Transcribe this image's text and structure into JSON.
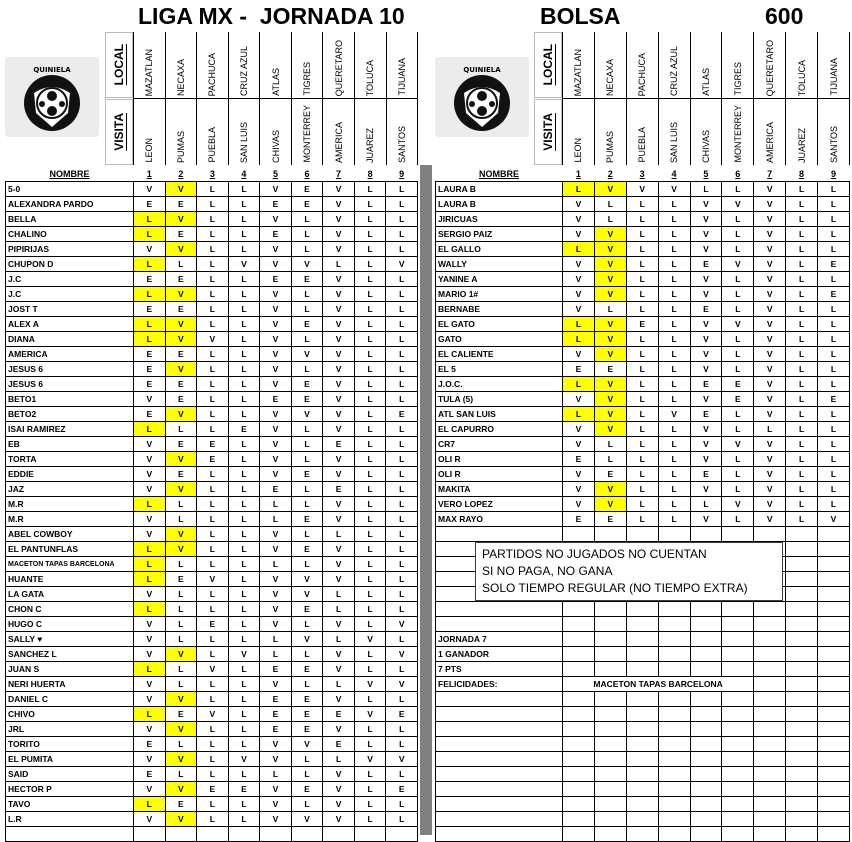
{
  "header": {
    "title": "LIGA MX -  JORNADA 10",
    "bolsa_label": "BOLSA",
    "bolsa_amount": "600",
    "logo_text": "QUINIELA",
    "local_label": "LOCAL",
    "visita_label": "VISITA"
  },
  "matches": [
    {
      "local": "MAZATLAN",
      "visita": "LEON"
    },
    {
      "local": "NECAXA",
      "visita": "PUMAS"
    },
    {
      "local": "PACHUCA",
      "visita": "PUEBLA"
    },
    {
      "local": "CRUZ AZUL",
      "visita": "SAN LUIS"
    },
    {
      "local": "ATLAS",
      "visita": "CHIVAS"
    },
    {
      "local": "TIGRES",
      "visita": "MONTERREY"
    },
    {
      "local": "QUERETARO",
      "visita": "AMERICA"
    },
    {
      "local": "TOLUCA",
      "visita": "JUAREZ"
    },
    {
      "local": "TIJUANA",
      "visita": "SANTOS"
    }
  ],
  "results": [
    "L",
    "V",
    null,
    null,
    null,
    null,
    null,
    null,
    null
  ],
  "highlight_color": "#ffff00",
  "column_headers": {
    "name": "NOMBRE",
    "numbers": [
      "1",
      "2",
      "3",
      "4",
      "5",
      "6",
      "7",
      "8",
      "9"
    ]
  },
  "left_entries": [
    {
      "name": "5-0",
      "picks": "VVLLVEVLL"
    },
    {
      "name": "ALEXANDRA PARDO",
      "picks": "EELLEEVLL"
    },
    {
      "name": "BELLA",
      "picks": "LVLLVLVLL"
    },
    {
      "name": "CHALINO",
      "picks": "LELLELVLL"
    },
    {
      "name": "PIPIRIJAS",
      "picks": "VVLLVLVLL"
    },
    {
      "name": "CHUPON D",
      "picks": "LLLVVVLLV"
    },
    {
      "name": "J.C",
      "picks": "EELLEEVLL"
    },
    {
      "name": "J.C",
      "picks": "LVLLVLVLL"
    },
    {
      "name": "JOST T",
      "picks": "EELLVLVLL"
    },
    {
      "name": "ALEX A",
      "picks": "LVLLVEVLL"
    },
    {
      "name": "DIANA",
      "picks": "LVVLVLVLL"
    },
    {
      "name": "AMERICA",
      "picks": "EELLVVVLL"
    },
    {
      "name": "JESUS 6",
      "picks": "EVLLVLVLL"
    },
    {
      "name": "JESUS 6",
      "picks": "EELLVEVLL"
    },
    {
      "name": "BETO1",
      "picks": "VELLEEVLL"
    },
    {
      "name": "BETO2",
      "picks": "EVLLVVVLE"
    },
    {
      "name": "ISAI RAMIREZ",
      "picks": "LLLEVLVLL"
    },
    {
      "name": "EB",
      "picks": "VEELVLELL"
    },
    {
      "name": "TORTA",
      "picks": "VVELVLVLL"
    },
    {
      "name": "EDDIE",
      "picks": "VELLVEVLL"
    },
    {
      "name": "JAZ",
      "picks": "VVLLELELL"
    },
    {
      "name": "M.R",
      "picks": "LLLLLLVLL"
    },
    {
      "name": "M.R",
      "picks": "VLLLLEVLL"
    },
    {
      "name": "ABEL COWBOY",
      "picks": "VVLLVLLLL"
    },
    {
      "name": "EL PANTUNFLAS",
      "picks": "LVLLVEVLL"
    },
    {
      "name": "MACETON TAPAS BARCELONA",
      "picks": "LLLLLLVLL"
    },
    {
      "name": "HUANTE",
      "picks": "LEVLVVVLL"
    },
    {
      "name": "LA GATA",
      "picks": "VLLLVVLLL"
    },
    {
      "name": "CHON C",
      "picks": "LLLLVELLL"
    },
    {
      "name": "HUGO C",
      "picks": "VLELVLVLV"
    },
    {
      "name": "SALLY ♥",
      "picks": "VLLLLVLVL"
    },
    {
      "name": "SANCHEZ L",
      "picks": "VVLVLLVLV"
    },
    {
      "name": "JUAN S",
      "picks": "LLVLEEVLL"
    },
    {
      "name": "NERI HUERTA",
      "picks": "VLLLVLLVV"
    },
    {
      "name": "DANIEL C",
      "picks": "VVLLEEVLL"
    },
    {
      "name": "CHIVO",
      "picks": "LEVLEEEVE"
    },
    {
      "name": "JRL",
      "picks": "VVLLEEVLL"
    },
    {
      "name": "TORITO",
      "picks": "ELLLVVELL"
    },
    {
      "name": "EL PUMITA",
      "picks": "VVLVVLLVV"
    },
    {
      "name": "SAID",
      "picks": "ELLLLLVLL"
    },
    {
      "name": "HECTOR P",
      "picks": "VVEEVEVLE"
    },
    {
      "name": "TAVO",
      "picks": "LELLVLVLL"
    },
    {
      "name": "L.R",
      "picks": "VVLLVVVLL"
    }
  ],
  "right_entries": [
    {
      "name": "LAURA B",
      "picks": "LVVVLLVLL"
    },
    {
      "name": "LAURA B",
      "picks": "VLLLVVVLL"
    },
    {
      "name": "JIRICUAS",
      "picks": "VLLLVLVLL"
    },
    {
      "name": "SERGIO PAIZ",
      "picks": "VVLLVLVLL"
    },
    {
      "name": "EL GALLO",
      "picks": "LVLLVLVLL"
    },
    {
      "name": "WALLY",
      "picks": "VVLLEVVLE"
    },
    {
      "name": "YANINE A",
      "picks": "VVLLVLVLL"
    },
    {
      "name": "MARIO 1#",
      "picks": "VVLLVLVLE"
    },
    {
      "name": "BERNABE",
      "picks": "VLLLELVLL"
    },
    {
      "name": "EL GATO",
      "picks": "LVELVVVLL"
    },
    {
      "name": "GATO",
      "picks": "LVLLVLVLL"
    },
    {
      "name": "EL CALIENTE",
      "picks": "VVLLVLVLL"
    },
    {
      "name": "EL 5",
      "picks": "EELLVLVLL"
    },
    {
      "name": "J.O.C.",
      "picks": "LVLLEEVLL"
    },
    {
      "name": "TULA (5)",
      "picks": "VVLLVEVLE"
    },
    {
      "name": "ATL SAN LUIS",
      "picks": "LVLVELVLL"
    },
    {
      "name": "EL CAPURRO",
      "picks": "VVLLVLLLL"
    },
    {
      "name": "CR7",
      "picks": "VLLLVVVLL"
    },
    {
      "name": "OLI R",
      "picks": "ELLLVLVLL"
    },
    {
      "name": "OLI R",
      "picks": "VELLELVLL"
    },
    {
      "name": "MAKITA",
      "picks": "VVLLVLVLL"
    },
    {
      "name": "VERO LOPEZ",
      "picks": "VVLLLVVLL"
    },
    {
      "name": "MAX RAYO",
      "picks": "EELLVLVLV"
    }
  ],
  "notes": [
    "PARTIDOS NO JUGADOS NO CUENTAN",
    "SI NO PAGA, NO GANA",
    "SOLO TIEMPO REGULAR (NO TIEMPO EXTRA)"
  ],
  "previous": {
    "jornada": "JORNADA 7",
    "winners": "1 GANADOR",
    "points": "7 PTS",
    "congrats_label": "FELICIDADES:",
    "winner_name": "MACETON TAPAS BARCELONA"
  }
}
